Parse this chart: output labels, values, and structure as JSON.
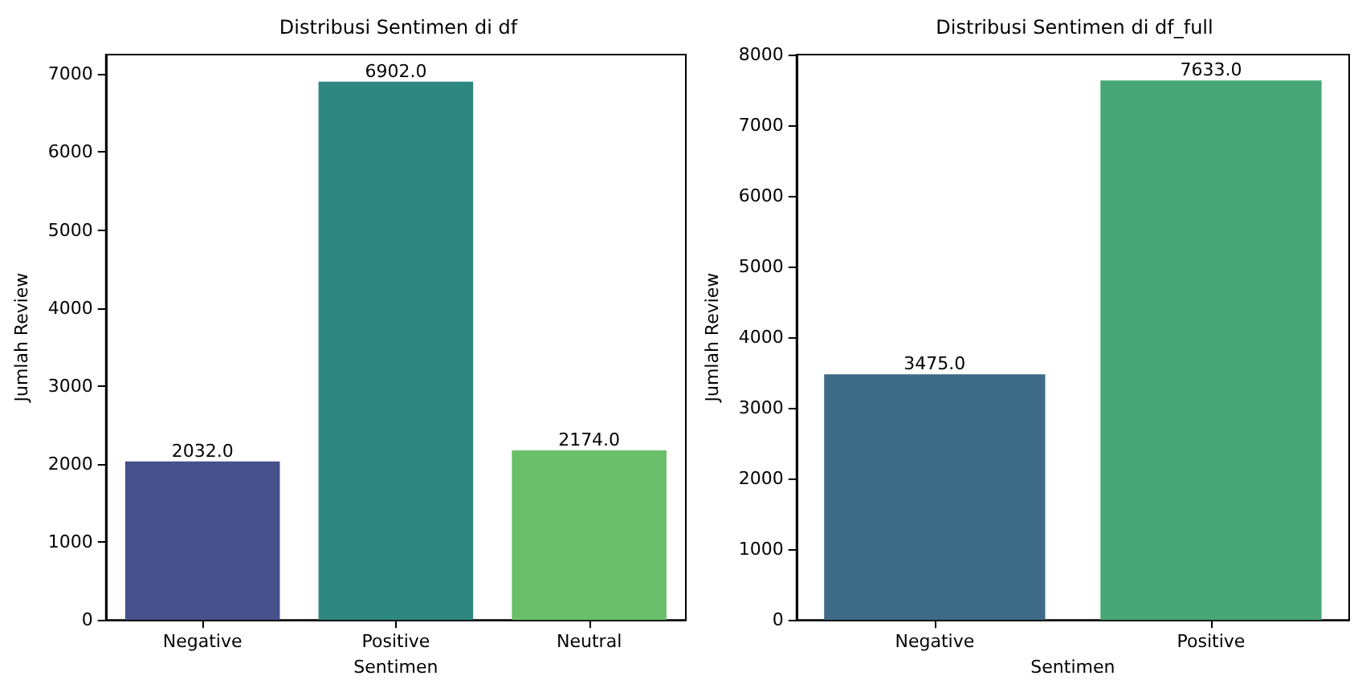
{
  "chart_data": [
    {
      "type": "bar",
      "title": "Distribusi Sentimen di df",
      "xlabel": "Sentimen",
      "ylabel": "Jumlah Review",
      "categories": [
        "Negative",
        "Positive",
        "Neutral"
      ],
      "values": [
        2032.0,
        6902.0,
        2174.0
      ],
      "colors": [
        "#46508a",
        "#2e8780",
        "#6abf6a"
      ],
      "ylim": [
        0,
        7250
      ],
      "yticks": [
        0,
        1000,
        2000,
        3000,
        4000,
        5000,
        6000,
        7000
      ],
      "data_labels": true,
      "value_labels": [
        "2032.0",
        "6902.0",
        "2174.0"
      ]
    },
    {
      "type": "bar",
      "title": "Distribusi Sentimen di df_full",
      "xlabel": "Sentimen",
      "ylabel": "Jumlah Review",
      "categories": [
        "Negative",
        "Positive"
      ],
      "values": [
        3475.0,
        7633.0
      ],
      "colors": [
        "#3d6a86",
        "#46a676"
      ],
      "ylim": [
        0,
        8000
      ],
      "yticks": [
        0,
        1000,
        2000,
        3000,
        4000,
        5000,
        6000,
        7000,
        8000
      ],
      "data_labels": true,
      "value_labels": [
        "3475.0",
        "7633.0"
      ]
    }
  ]
}
